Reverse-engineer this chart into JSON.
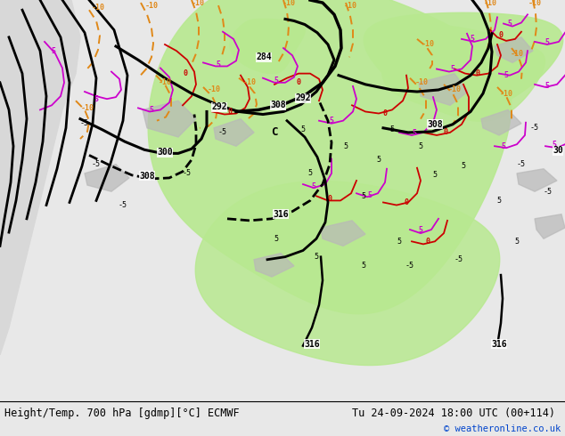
{
  "title_left": "Height/Temp. 700 hPa [gdmp][°C] ECMWF",
  "title_right": "Tu 24-09-2024 18:00 UTC (00+114)",
  "copyright": "© weatheronline.co.uk",
  "fig_width": 6.34,
  "fig_height": 4.9,
  "dpi": 100,
  "bottom_bar_color": "#e8e8e8",
  "map_bg_color": "#d8d8d8",
  "green_color": "#b8e890",
  "land_gray": "#c8c8c8",
  "font_size_title": 8.5,
  "font_size_copyright": 7.5,
  "black_color": "#000000",
  "orange_color": "#e08818",
  "red_color": "#cc0000",
  "magenta_color": "#cc00cc",
  "blue_label": "#0044cc"
}
